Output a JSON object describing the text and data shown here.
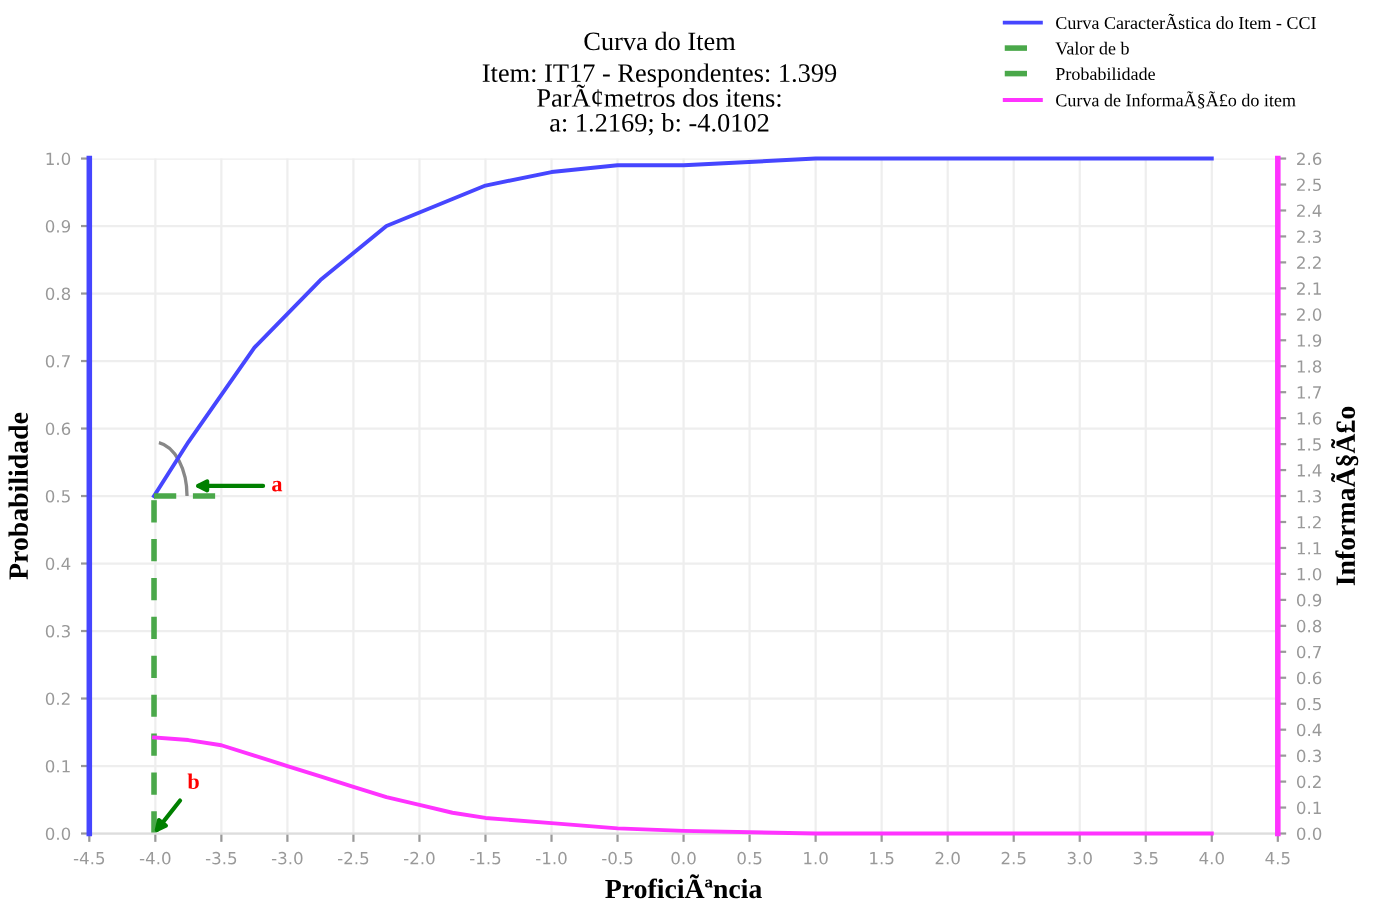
{
  "chart_data": {
    "type": "line",
    "title": "Curva do Item",
    "subtitle": "Item: IT17 - Respondentes: 1.399\nParÃ¢metros dos itens:\na: 1.2169; b: -4.0102",
    "xlabel": "ProficiÃªncia",
    "ylabel": "Probabilidade",
    "y2label": "InformaÃ§Ã£o",
    "series": [
      {
        "name": "Curva CaracterÃstica do Item - CCI",
        "color": "#4646ff",
        "x": [
          -4.01,
          -3.75,
          -3.5,
          -3.25,
          -3.0,
          -2.75,
          -2.5,
          -2.25,
          -2.0,
          -1.75,
          -1.5,
          -1.0,
          -0.5,
          0.0,
          1.0,
          2.0,
          3.0,
          4.0
        ],
        "values": [
          0.5,
          0.58,
          0.65,
          0.72,
          0.77,
          0.82,
          0.86,
          0.9,
          0.92,
          0.94,
          0.96,
          0.98,
          0.99,
          0.99,
          1.0,
          1.0,
          1.0,
          1.0
        ]
      },
      {
        "name": "Valor de b",
        "color": "#4aa84a",
        "line_style": "dashed",
        "x": [
          -4.01,
          -4.01
        ],
        "values": [
          0.0,
          0.5
        ]
      },
      {
        "name": "Probabilidade",
        "color": "#4aa84a",
        "line_style": "dashed",
        "x": [
          -4.01,
          -3.5
        ],
        "values": [
          0.5,
          0.5
        ]
      },
      {
        "name": "Curva de InformaÃ§Ã£o do item",
        "color": "#ff33ff",
        "axis": "y2",
        "x": [
          -4.01,
          -3.75,
          -3.5,
          -3.25,
          -3.0,
          -2.75,
          -2.5,
          -2.25,
          -2.0,
          -1.75,
          -1.5,
          -1.0,
          -0.5,
          0.0,
          1.0,
          2.0,
          3.0,
          4.0
        ],
        "values": [
          0.37,
          0.36,
          0.34,
          0.3,
          0.26,
          0.22,
          0.18,
          0.14,
          0.11,
          0.08,
          0.06,
          0.04,
          0.02,
          0.01,
          0.0,
          0.0,
          0.0,
          0.0
        ]
      }
    ],
    "xlim": [
      -4.5,
      4.5
    ],
    "xticks": [
      -4.5,
      {
        "value": -4,
        "label": "-4.0"
      },
      -3.5,
      {
        "value": -3,
        "label": "-3.0"
      },
      -2.5,
      {
        "value": -2,
        "label": "-2.0"
      },
      -1.5,
      {
        "value": -1,
        "label": "-1.0"
      },
      -0.5,
      {
        "value": 0,
        "label": "0.0"
      },
      0.5,
      {
        "value": 1,
        "label": "1.0"
      },
      1.5,
      {
        "value": 2,
        "label": "2.0"
      },
      2.5,
      {
        "value": 3,
        "label": "3.0"
      },
      3.5,
      {
        "value": 4,
        "label": "4.0"
      },
      4.5
    ],
    "ylim": [
      0,
      1
    ],
    "yticks": [
      {
        "value": 0,
        "label": "0.0"
      },
      0.1,
      0.2,
      0.3,
      0.4,
      0.5,
      0.6,
      0.7,
      0.8,
      0.9,
      {
        "value": 1,
        "label": "1.0"
      }
    ],
    "y2lim": [
      0,
      2.6
    ],
    "y2ticks": [
      {
        "value": 0,
        "label": "0.0"
      },
      0.1,
      0.2,
      0.3,
      0.4,
      0.5,
      0.6,
      0.7,
      0.8,
      0.9,
      {
        "value": 1,
        "label": "1.0"
      },
      1.1,
      1.2,
      1.3,
      1.4,
      1.5,
      1.6,
      1.7,
      1.8,
      1.9,
      {
        "value": 2,
        "label": "2.0"
      },
      2.1,
      2.2,
      2.3,
      2.4,
      2.5,
      2.6
    ],
    "annotations": [
      "a",
      {
        "text": "b",
        "x": -4.01,
        "y": 0.0
      }
    ],
    "grid": true,
    "legend": "top right",
    "marker": "none"
  }
}
